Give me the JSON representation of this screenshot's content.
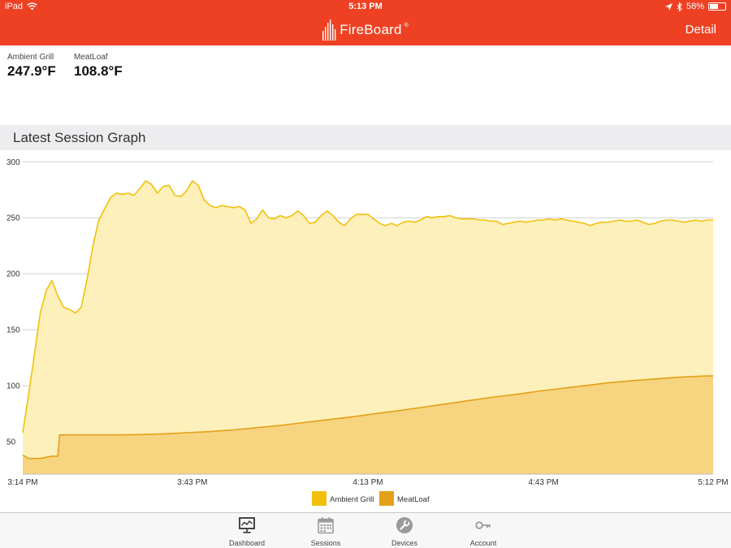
{
  "status_bar": {
    "device": "iPad",
    "time": "5:13 PM",
    "battery": "58%",
    "battery_level": 0.58
  },
  "nav": {
    "brand": "FireBoard",
    "registered": "®",
    "detail_label": "Detail"
  },
  "readings": [
    {
      "label": "Ambient Grill",
      "value": "247.9°F"
    },
    {
      "label": "MeatLoaf",
      "value": "108.8°F"
    }
  ],
  "section_title": "Latest Session Graph",
  "colors": {
    "brand": "#ee4123",
    "ambient_line": "#f2c00c",
    "ambient_fill": "#fdeeb2",
    "meatloaf_line": "#e3a019",
    "meatloaf_fill": "#f6d07a"
  },
  "chart_data": {
    "type": "area",
    "x_unit": "minutes since 3:14 PM",
    "x_range": [
      0,
      118
    ],
    "ylim": [
      21,
      306
    ],
    "y_ticks": [
      50,
      100,
      150,
      200,
      250,
      300
    ],
    "x_ticks": [
      {
        "label": "3:14 PM",
        "x": 0
      },
      {
        "label": "3:43 PM",
        "x": 29
      },
      {
        "label": "4:13 PM",
        "x": 59
      },
      {
        "label": "4:43 PM",
        "x": 89
      },
      {
        "label": "5:12 PM",
        "x": 118
      }
    ],
    "grid": true,
    "legend_position": "bottom",
    "series": [
      {
        "name": "Ambient Grill",
        "x": [
          0,
          1,
          2,
          3,
          4,
          5,
          6,
          7,
          8,
          9,
          10,
          11,
          12,
          13,
          14,
          15,
          16,
          17,
          18,
          19,
          20,
          21,
          22,
          23,
          24,
          25,
          26,
          27,
          28,
          29,
          30,
          31,
          32,
          33,
          34,
          35,
          36,
          37,
          38,
          39,
          40,
          41,
          42,
          43,
          44,
          45,
          46,
          47,
          48,
          49,
          50,
          51,
          52,
          53,
          54,
          55,
          56,
          57,
          58,
          59,
          60,
          61,
          62,
          63,
          64,
          65,
          66,
          67,
          68,
          69,
          70,
          71,
          72,
          73,
          74,
          75,
          76,
          77,
          78,
          79,
          80,
          81,
          82,
          83,
          84,
          85,
          86,
          87,
          88,
          89,
          90,
          91,
          92,
          93,
          94,
          95,
          96,
          97,
          98,
          99,
          100,
          101,
          102,
          103,
          104,
          105,
          106,
          107,
          108,
          109,
          110,
          111,
          112,
          113,
          114,
          115,
          116,
          117,
          118
        ],
        "values": [
          58,
          92,
          128,
          165,
          185,
          194,
          180,
          170,
          168,
          165,
          170,
          195,
          225,
          248,
          258,
          268,
          272,
          271,
          272,
          270,
          276,
          283,
          280,
          272,
          278,
          279,
          270,
          269,
          274,
          283,
          279,
          266,
          261,
          259,
          261,
          260,
          259,
          260,
          257,
          245,
          249,
          257,
          250,
          249,
          252,
          250,
          252,
          256,
          252,
          245,
          246,
          252,
          256,
          252,
          246,
          243,
          249,
          253,
          253,
          253,
          249,
          245,
          243,
          245,
          243,
          246,
          247,
          246,
          248,
          251,
          250,
          251,
          251,
          252,
          250,
          249,
          249,
          249,
          248,
          248,
          247,
          247,
          244,
          245,
          246,
          247,
          246,
          247,
          248,
          248,
          249,
          248,
          249,
          248,
          247,
          246,
          245,
          243,
          245,
          246,
          246,
          247,
          248,
          247,
          247,
          248,
          246,
          244,
          245,
          247,
          248,
          248,
          247,
          246,
          247,
          248,
          247,
          248,
          248
        ]
      },
      {
        "name": "MeatLoaf",
        "x": [
          0,
          1,
          2,
          3,
          4,
          5,
          6,
          6.3,
          8,
          12,
          16,
          20,
          24,
          28,
          32,
          36,
          40,
          44,
          48,
          52,
          56,
          60,
          64,
          68,
          72,
          76,
          80,
          84,
          88,
          92,
          96,
          100,
          104,
          108,
          112,
          116,
          118
        ],
        "values": [
          38,
          35,
          35,
          35,
          36,
          37,
          37,
          56,
          56,
          56,
          56,
          56.3,
          57,
          58,
          59,
          60.5,
          62.5,
          64.5,
          67,
          69.5,
          72,
          74.8,
          77.5,
          80.5,
          83.5,
          86.5,
          89.5,
          92,
          95,
          97.5,
          100,
          102.5,
          104.5,
          106,
          107.5,
          108.5,
          108.8
        ]
      }
    ]
  },
  "tabs": [
    {
      "label": "Dashboard",
      "icon": "dashboard-icon"
    },
    {
      "label": "Sessions",
      "icon": "calendar-icon"
    },
    {
      "label": "Devices",
      "icon": "wrench-icon"
    },
    {
      "label": "Account",
      "icon": "key-icon"
    }
  ]
}
